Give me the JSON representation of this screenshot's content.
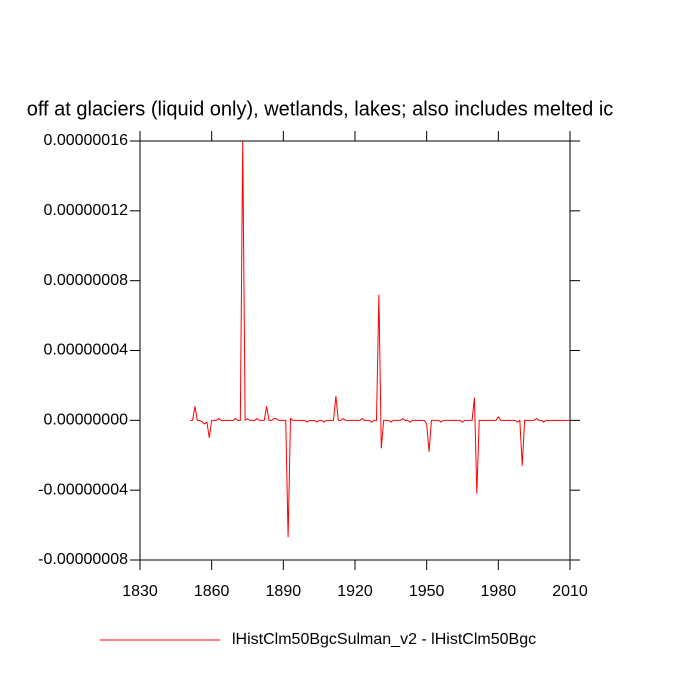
{
  "chart_data": {
    "type": "line",
    "title": "off at glaciers (liquid only), wetlands, lakes; also includes melted ic",
    "x": [
      1851,
      1852,
      1853,
      1854,
      1855,
      1856,
      1857,
      1858,
      1859,
      1860,
      1861,
      1862,
      1863,
      1864,
      1865,
      1866,
      1867,
      1868,
      1869,
      1870,
      1871,
      1872,
      1873,
      1874,
      1875,
      1876,
      1877,
      1878,
      1879,
      1880,
      1881,
      1882,
      1883,
      1884,
      1885,
      1886,
      1887,
      1888,
      1889,
      1890,
      1891,
      1892,
      1893,
      1894,
      1895,
      1896,
      1897,
      1898,
      1899,
      1900,
      1901,
      1902,
      1903,
      1904,
      1905,
      1906,
      1907,
      1908,
      1909,
      1910,
      1911,
      1912,
      1913,
      1914,
      1915,
      1916,
      1917,
      1918,
      1919,
      1920,
      1921,
      1922,
      1923,
      1924,
      1925,
      1926,
      1927,
      1928,
      1929,
      1930,
      1931,
      1932,
      1933,
      1934,
      1935,
      1936,
      1937,
      1938,
      1939,
      1940,
      1941,
      1942,
      1943,
      1944,
      1945,
      1946,
      1947,
      1948,
      1949,
      1950,
      1951,
      1952,
      1953,
      1954,
      1955,
      1956,
      1957,
      1958,
      1959,
      1960,
      1961,
      1962,
      1963,
      1964,
      1965,
      1966,
      1967,
      1968,
      1969,
      1970,
      1971,
      1972,
      1973,
      1974,
      1975,
      1976,
      1977,
      1978,
      1979,
      1980,
      1981,
      1982,
      1983,
      1984,
      1985,
      1986,
      1987,
      1988,
      1989,
      1990,
      1991,
      1992,
      1993,
      1994,
      1995,
      1996,
      1997,
      1998,
      1999,
      2000,
      2001,
      2002,
      2003,
      2004,
      2005,
      2006,
      2007,
      2008,
      2009,
      2010
    ],
    "series": [
      {
        "name": "lHistClm50BgcSulman_v2 - lHistClm50Bgc",
        "color": "#ff0000",
        "values": [
          0,
          0,
          8e-09,
          0,
          0,
          -1e-09,
          -2e-09,
          -1e-09,
          -1e-08,
          0,
          0,
          0,
          1e-09,
          0,
          0,
          0,
          0,
          0,
          0,
          1e-09,
          0,
          0,
          1.6e-07,
          0,
          1e-09,
          0,
          0,
          0,
          1e-09,
          0,
          0,
          0,
          8e-09,
          0,
          0,
          1e-09,
          1e-09,
          0,
          0,
          0,
          0,
          -6.7e-08,
          1e-09,
          0,
          0,
          0,
          0,
          0,
          0,
          -1e-09,
          0,
          0,
          0,
          -1e-09,
          0,
          0,
          -1e-09,
          0,
          0,
          0,
          0,
          1.4e-08,
          0,
          0,
          1e-09,
          0,
          0,
          0,
          0,
          0,
          0,
          0,
          1e-09,
          0,
          0,
          0,
          -1e-09,
          0,
          0,
          7.2e-08,
          -1.6e-08,
          0,
          0,
          0,
          -1e-09,
          0,
          0,
          0,
          0,
          1e-09,
          0,
          0,
          -1e-09,
          0,
          0,
          0,
          0,
          0,
          0,
          -2e-09,
          -1.8e-08,
          0,
          0,
          0,
          0,
          -1e-09,
          0,
          0,
          0,
          0,
          0,
          0,
          0,
          0,
          -1e-09,
          0,
          0,
          0,
          0,
          1.3e-08,
          -4.2e-08,
          0,
          0,
          0,
          0,
          0,
          0,
          0,
          0,
          2e-09,
          0,
          0,
          0,
          0,
          0,
          0,
          0,
          -1e-09,
          0,
          -2.6e-08,
          0,
          0,
          0,
          0,
          0,
          1e-09,
          0,
          0,
          -1e-09,
          0,
          0,
          0,
          0,
          0,
          0,
          0,
          0,
          0,
          0,
          0
        ]
      }
    ],
    "xlim": [
      1830,
      2010
    ],
    "xticks": [
      1830,
      1860,
      1890,
      1920,
      1950,
      1980,
      2010
    ],
    "ylim": [
      -8e-08,
      1.6e-07
    ],
    "yticks": [
      {
        "value": -8e-08,
        "label": "-0.00000008"
      },
      {
        "value": -4e-08,
        "label": "-0.00000004"
      },
      {
        "value": 0,
        "label": "0.00000000"
      },
      {
        "value": 4e-08,
        "label": "0.00000004"
      },
      {
        "value": 8e-08,
        "label": "0.00000008"
      },
      {
        "value": 1.2e-07,
        "label": "0.00000012"
      },
      {
        "value": 1.6e-07,
        "label": "0.00000016"
      }
    ]
  }
}
